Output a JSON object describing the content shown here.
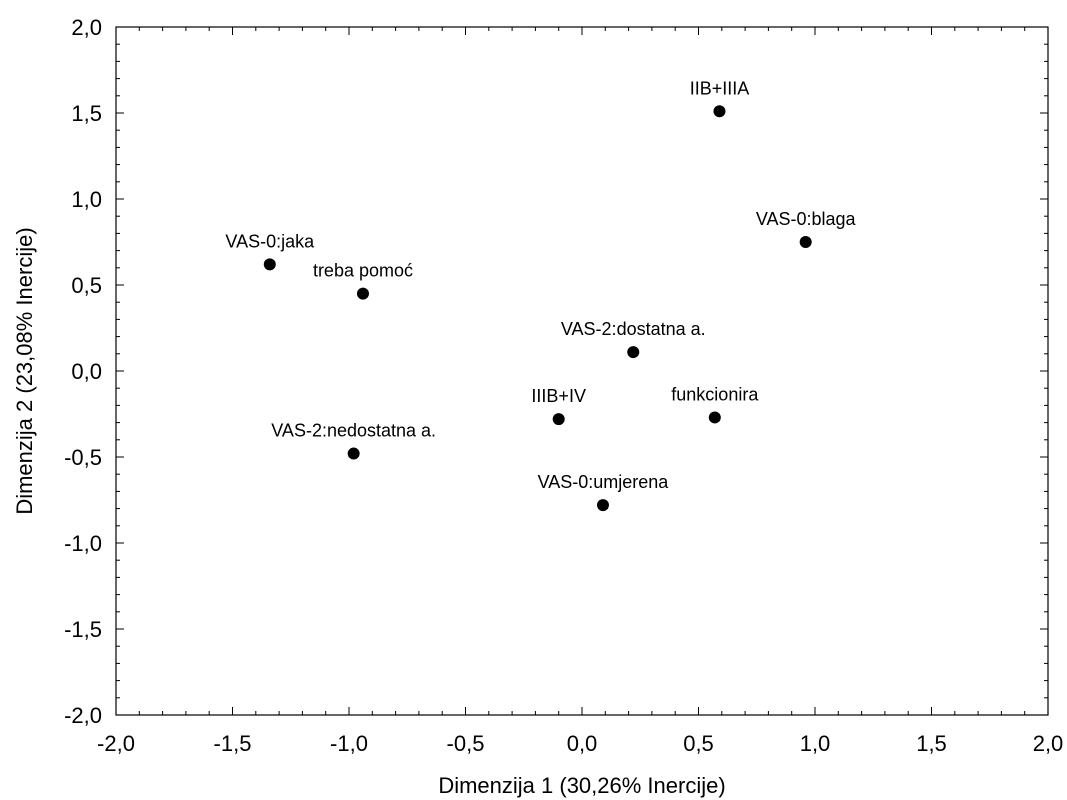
{
  "chart_data": {
    "type": "scatter",
    "xlabel": "Dimenzija 1 (30,26% Inercije)",
    "ylabel": "Dimenzija 2 (23,08% Inercije)",
    "xlim": [
      -2.0,
      2.0
    ],
    "ylim": [
      -2.0,
      2.0
    ],
    "grid": false,
    "colors": {
      "marker": "#000000",
      "text": "#000000",
      "frame": "#000000"
    },
    "x_ticks": [
      "-2,0",
      "-1,5",
      "-1,0",
      "-0,5",
      "0,0",
      "0,5",
      "1,0",
      "1,5",
      "2,0"
    ],
    "y_ticks": [
      "-2,0",
      "-1,5",
      "-1,0",
      "-0,5",
      "0,0",
      "0,5",
      "1,0",
      "1,5",
      "2,0"
    ],
    "points": [
      {
        "label": "IIB+IIIA",
        "x": 0.59,
        "y": 1.51
      },
      {
        "label": "VAS-0:blaga",
        "x": 0.96,
        "y": 0.75
      },
      {
        "label": "VAS-0:jaka",
        "x": -1.34,
        "y": 0.62
      },
      {
        "label": "treba pomoć",
        "x": -0.94,
        "y": 0.45
      },
      {
        "label": "VAS-2:dostatna a.",
        "x": 0.22,
        "y": 0.11
      },
      {
        "label": "IIIB+IV",
        "x": -0.1,
        "y": -0.28
      },
      {
        "label": "funkcionira",
        "x": 0.57,
        "y": -0.27
      },
      {
        "label": "VAS-2:nedostatna a.",
        "x": -0.98,
        "y": -0.48
      },
      {
        "label": "VAS-0:umjerena",
        "x": 0.09,
        "y": -0.78
      }
    ]
  }
}
